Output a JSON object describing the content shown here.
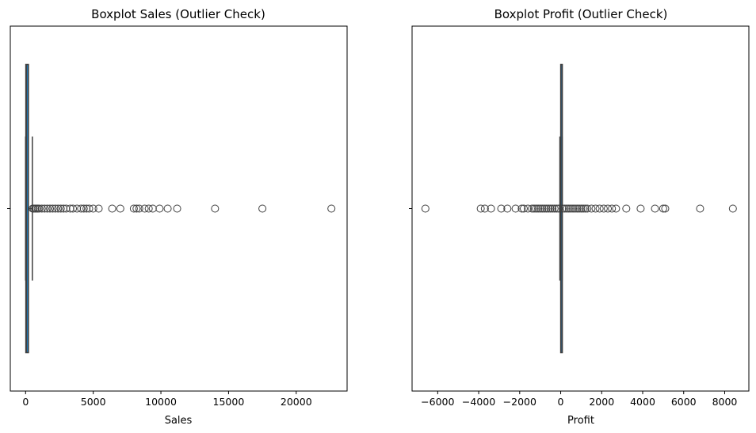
{
  "chart_data": [
    {
      "type": "boxplot",
      "title": "Boxplot Sales (Outlier Check)",
      "xlabel": "Sales",
      "ylabel": "",
      "xlim": [
        -1130,
        23760
      ],
      "xticks": [
        0,
        5000,
        10000,
        15000,
        20000
      ],
      "xtick_labels": [
        "0",
        "5000",
        "10000",
        "15000",
        "20000"
      ],
      "ytick_labels": [
        ""
      ],
      "box": {
        "whisker_low": 0.4,
        "q1": 17,
        "median": 54,
        "q3": 210,
        "whisker_high": 499
      },
      "box_color": "#1f77b4",
      "outliers": [
        520,
        600,
        700,
        800,
        900,
        1000,
        1200,
        1400,
        1600,
        1800,
        2000,
        2200,
        2400,
        2600,
        2800,
        3000,
        3300,
        3500,
        3800,
        4100,
        4300,
        4500,
        4700,
        5000,
        5400,
        6400,
        7000,
        8000,
        8200,
        8400,
        8800,
        9100,
        9400,
        9900,
        10500,
        11200,
        14000,
        17500,
        22600
      ],
      "grid": false
    },
    {
      "type": "boxplot",
      "title": "Boxplot Profit (Outlier Check)",
      "xlabel": "Profit",
      "ylabel": "",
      "xlim": [
        -7250,
        9180
      ],
      "xticks": [
        -6000,
        -4000,
        -2000,
        0,
        2000,
        4000,
        6000,
        8000
      ],
      "xtick_labels": [
        "−6000",
        "−4000",
        "−2000",
        "0",
        "2000",
        "4000",
        "6000",
        "8000"
      ],
      "ytick_labels": [
        ""
      ],
      "box": {
        "whisker_low": -39,
        "q1": 1.7,
        "median": 8.7,
        "q3": 29,
        "whisker_high": 70
      },
      "box_color": "#1f77b4",
      "outliers": [
        -6600,
        -3900,
        -3700,
        -3400,
        -2900,
        -2600,
        -2200,
        -1900,
        -1800,
        -1600,
        -1400,
        -1300,
        -1200,
        -1100,
        -1000,
        -900,
        -800,
        -700,
        -600,
        -500,
        -400,
        -300,
        -200,
        -100,
        100,
        200,
        300,
        400,
        500,
        600,
        700,
        800,
        900,
        1000,
        1100,
        1200,
        1300,
        1500,
        1700,
        1900,
        2100,
        2300,
        2500,
        2700,
        3200,
        3900,
        4600,
        5000,
        5100,
        6800,
        8400
      ],
      "grid": false
    }
  ]
}
